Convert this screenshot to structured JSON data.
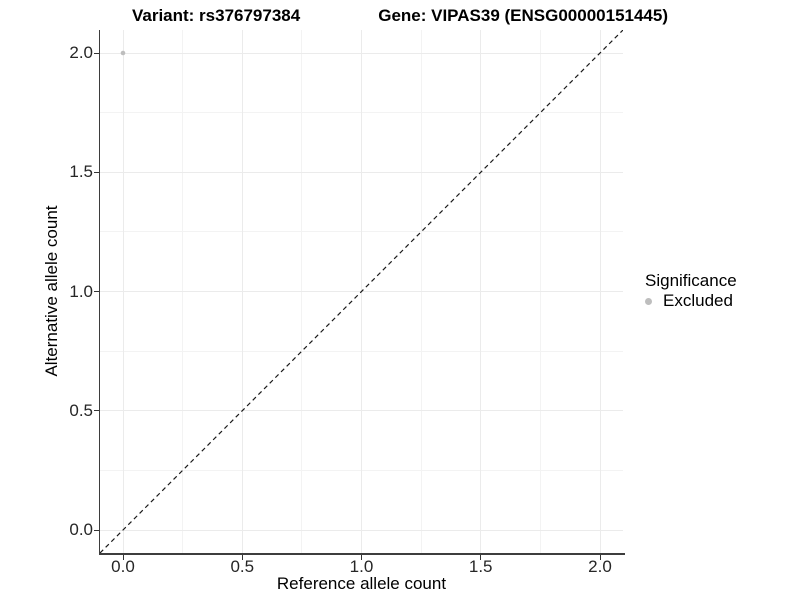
{
  "chart_data": {
    "type": "scatter",
    "title_left": "Variant: rs376797384",
    "title_right": "Gene: VIPAS39 (ENSG00000151445)",
    "xlabel": "Reference allele count",
    "ylabel": "Alternative allele count",
    "xlim": [
      -0.0965,
      2.0965
    ],
    "ylim": [
      -0.0965,
      2.0965
    ],
    "xticks": [
      0.0,
      0.5,
      1.0,
      1.5,
      2.0
    ],
    "xtick_labels": [
      "0.0",
      "0.5",
      "1.0",
      "1.5",
      "2.0"
    ],
    "yticks": [
      0.0,
      0.5,
      1.0,
      1.5,
      2.0
    ],
    "ytick_labels": [
      "0.0",
      "0.5",
      "1.0",
      "1.5",
      "2.0"
    ],
    "minor_ticks": [
      0.25,
      0.75,
      1.25,
      1.75
    ],
    "grid": true,
    "points": [
      {
        "x": 0.0,
        "y": 2.0,
        "series": "Excluded"
      }
    ],
    "identity_line": {
      "style": "dashed",
      "color": "#1a1a1a"
    },
    "legend": {
      "title": "Significance",
      "position": "right",
      "items": [
        {
          "label": "Excluded",
          "color": "#bebebe"
        }
      ]
    },
    "colors": {
      "grid_major": "#ebebeb",
      "grid_minor": "#f3f3f3",
      "axis_line": "#3d3d3d",
      "tick_text": "#262626",
      "point_excluded": "#bebebe"
    }
  }
}
